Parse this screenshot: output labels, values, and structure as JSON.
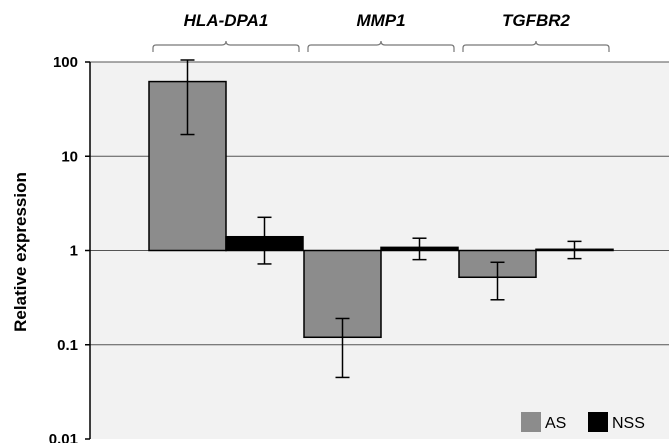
{
  "chart_data": {
    "type": "bar",
    "ylabel": "Relative expression",
    "yscale": "log",
    "ylim": [
      0.01,
      100
    ],
    "baseline": 1,
    "ytick_labels": [
      "100",
      "10",
      "1",
      "0.1",
      "0.01"
    ],
    "categories": [
      "HLA-DPA1",
      "MMP1",
      "TGFBR2"
    ],
    "series": [
      {
        "name": "AS",
        "color": "#8c8c8c",
        "values": [
          62,
          0.12,
          0.52
        ],
        "err_low": [
          17,
          0.045,
          0.3
        ],
        "err_high": [
          105,
          0.19,
          0.75
        ]
      },
      {
        "name": "NSS",
        "color": "#000000",
        "values": [
          1.4,
          1.08,
          1.03
        ],
        "err_low": [
          0.72,
          0.8,
          0.82
        ],
        "err_high": [
          2.25,
          1.35,
          1.25
        ]
      }
    ],
    "grid": true,
    "legend_position": "bottom-right"
  }
}
